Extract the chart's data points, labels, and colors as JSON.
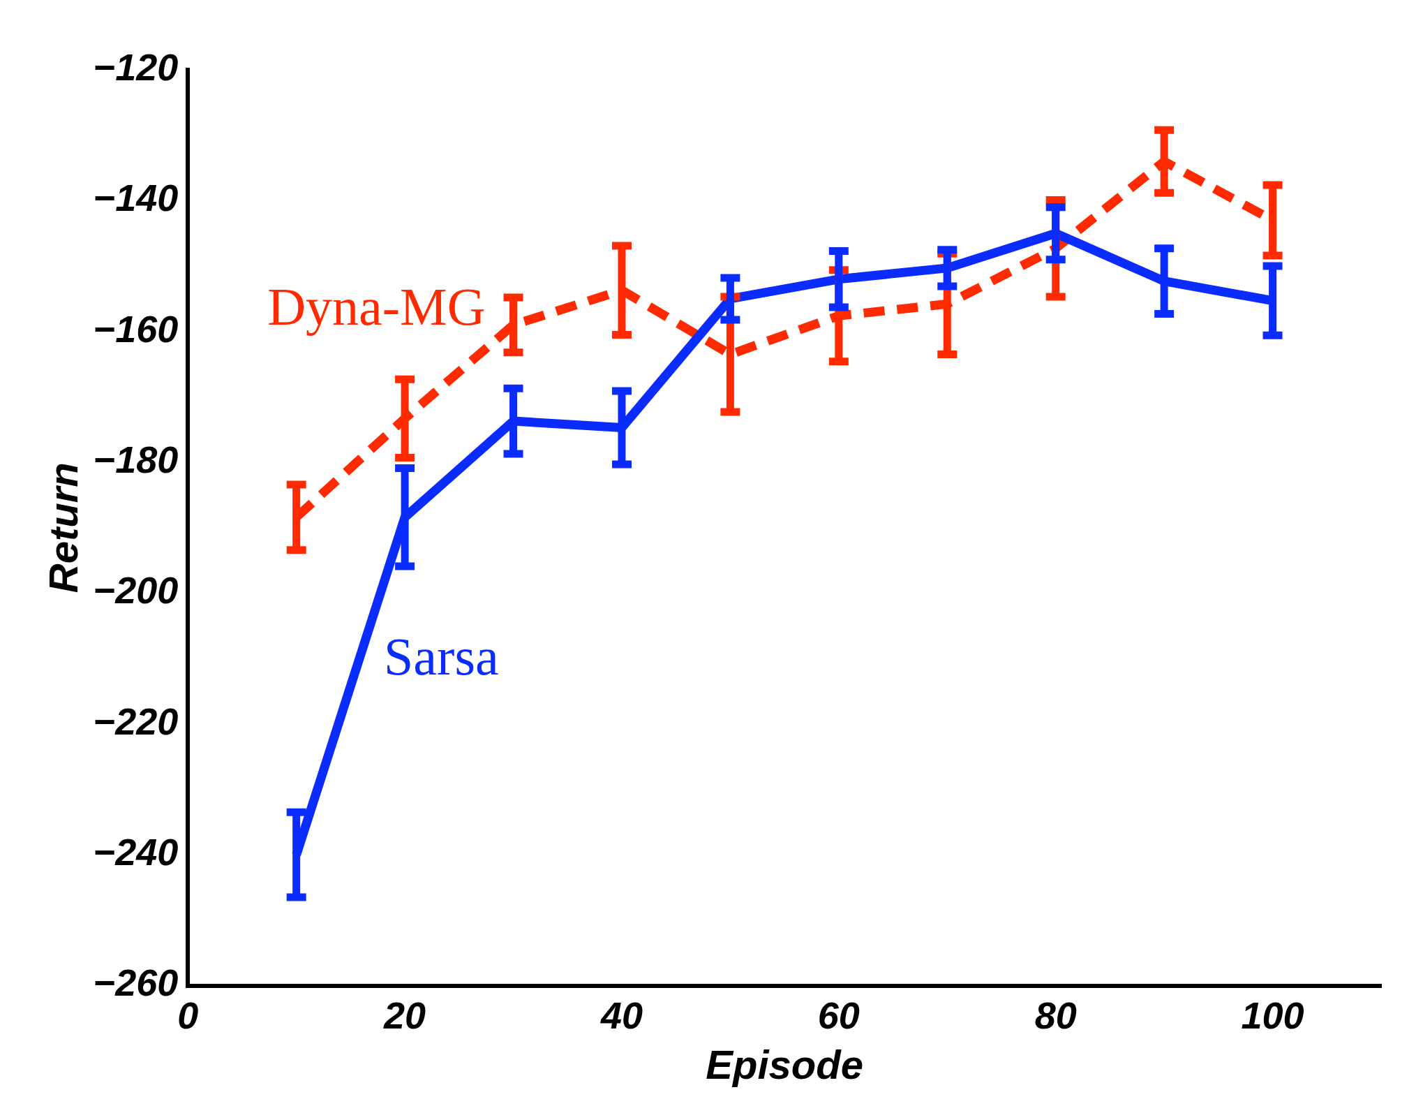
{
  "chart_data": {
    "type": "line",
    "xlabel": "Episode",
    "ylabel": "Return",
    "x": [
      10,
      20,
      30,
      40,
      50,
      60,
      70,
      80,
      90,
      100
    ],
    "series": [
      {
        "name": "Sarsa",
        "color": "#0a2cff",
        "line_style": "solid",
        "values": [
          -240,
          -188.4,
          -173.7,
          -174.7,
          -155,
          -152,
          -150.3,
          -145,
          -152.3,
          -155.3
        ],
        "errors": [
          6.5,
          7.5,
          5,
          5.6,
          3.2,
          4.3,
          2.8,
          4,
          5,
          5.3
        ]
      },
      {
        "name": "Dyna-MG",
        "color": "#ff2a00",
        "line_style": "dashed",
        "values": [
          -188.4,
          -173.3,
          -159,
          -153.7,
          -163.5,
          -157.6,
          -155.8,
          -147.3,
          -134,
          -143
        ],
        "errors": [
          5,
          6,
          4.2,
          6.8,
          8.8,
          7,
          7.7,
          7.4,
          4.8,
          5.4
        ]
      }
    ],
    "xlim": [
      0,
      110
    ],
    "xticks": [
      0,
      20,
      40,
      60,
      80,
      100
    ],
    "ylim": [
      -260,
      -120
    ],
    "yticks": [
      -260,
      -240,
      -220,
      -200,
      -180,
      -160,
      -140,
      -120
    ],
    "grid": false,
    "legend": false,
    "marker": "none"
  }
}
